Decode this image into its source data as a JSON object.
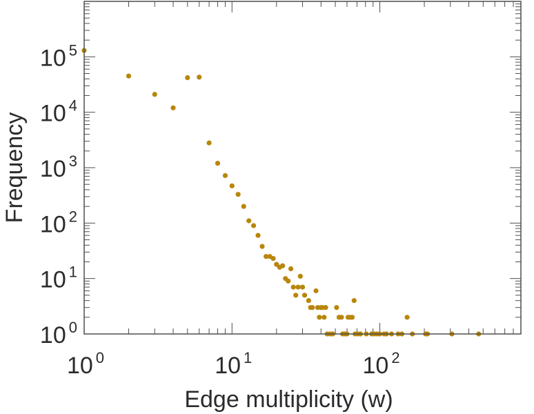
{
  "chart_data": {
    "type": "scatter",
    "xlabel": "Edge multiplicity (w)",
    "ylabel": "Frequency",
    "x_scale": "log",
    "y_scale": "log",
    "xlim": [
      1,
      900
    ],
    "ylim": [
      1,
      1000000
    ],
    "grid": false,
    "point_color": "#b8860b",
    "x_ticks": [
      {
        "base": "10",
        "exp": "0"
      },
      {
        "base": "10",
        "exp": "1"
      },
      {
        "base": "10",
        "exp": "2"
      }
    ],
    "y_ticks": [
      {
        "base": "10",
        "exp": "0"
      },
      {
        "base": "10",
        "exp": "1"
      },
      {
        "base": "10",
        "exp": "2"
      },
      {
        "base": "10",
        "exp": "3"
      },
      {
        "base": "10",
        "exp": "4"
      },
      {
        "base": "10",
        "exp": "5"
      }
    ],
    "series": [
      {
        "points": [
          [
            1,
            130000
          ],
          [
            2,
            45000
          ],
          [
            3,
            21000
          ],
          [
            4,
            12000
          ],
          [
            5,
            42000
          ],
          [
            6,
            43000
          ],
          [
            7,
            2800
          ],
          [
            8,
            1200
          ],
          [
            9,
            720
          ],
          [
            10,
            470
          ],
          [
            11,
            330
          ],
          [
            12,
            200
          ],
          [
            13,
            110
          ],
          [
            14,
            90
          ],
          [
            15,
            60
          ],
          [
            16,
            38
          ],
          [
            17,
            25
          ],
          [
            18,
            25
          ],
          [
            19,
            23
          ],
          [
            20,
            18
          ],
          [
            21,
            16
          ],
          [
            22,
            17
          ],
          [
            23,
            10
          ],
          [
            24,
            9
          ],
          [
            25,
            15
          ],
          [
            26,
            7
          ],
          [
            27,
            5
          ],
          [
            28,
            7
          ],
          [
            29,
            11
          ],
          [
            30,
            7
          ],
          [
            31,
            5
          ],
          [
            33,
            4
          ],
          [
            34,
            3
          ],
          [
            35,
            3
          ],
          [
            37,
            6
          ],
          [
            38,
            3
          ],
          [
            39,
            2
          ],
          [
            40,
            3
          ],
          [
            41,
            3
          ],
          [
            42,
            2
          ],
          [
            43,
            3
          ],
          [
            44,
            1
          ],
          [
            46,
            1
          ],
          [
            48,
            1
          ],
          [
            51,
            3
          ],
          [
            53,
            2
          ],
          [
            55,
            2
          ],
          [
            56,
            1
          ],
          [
            58,
            1
          ],
          [
            60,
            1
          ],
          [
            61,
            2
          ],
          [
            63,
            2
          ],
          [
            65,
            2
          ],
          [
            67,
            4
          ],
          [
            68,
            1
          ],
          [
            71,
            1
          ],
          [
            74,
            1
          ],
          [
            81,
            1
          ],
          [
            88,
            1
          ],
          [
            92,
            1
          ],
          [
            96,
            1
          ],
          [
            100,
            1
          ],
          [
            107,
            1
          ],
          [
            111,
            1
          ],
          [
            120,
            1
          ],
          [
            133,
            1
          ],
          [
            141,
            1
          ],
          [
            153,
            2
          ],
          [
            166,
            1
          ],
          [
            204,
            1
          ],
          [
            210,
            1
          ],
          [
            307,
            1
          ],
          [
            466,
            1
          ]
        ]
      }
    ]
  }
}
